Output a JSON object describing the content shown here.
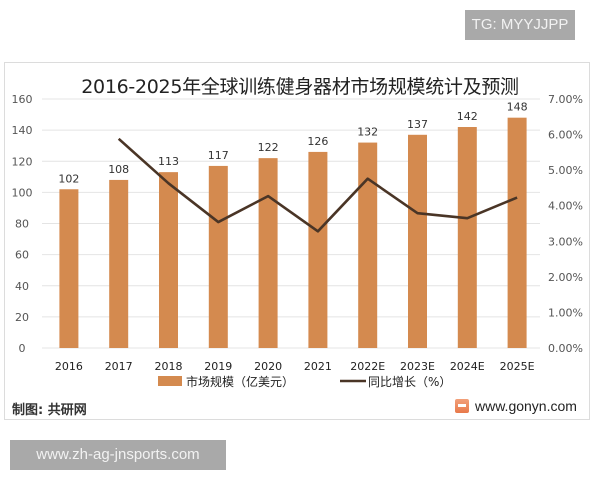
{
  "badges": {
    "top_right": "TG: MYYJJPP",
    "bottom_left": "www.zh-ag-jnsports.com"
  },
  "footer": {
    "source_label": "制图: 共研网",
    "site": "www.gonyn.com",
    "logo_icon": "gonyn-logo-icon"
  },
  "colors": {
    "bar": "#d48a4f",
    "line": "#4a3526",
    "grid": "#e4e4e4",
    "axis_text": "#555555"
  },
  "chart_data": {
    "type": "bar+line",
    "title": "2016-2025年全球训练健身器材市场规模统计及预测",
    "categories": [
      "2016",
      "2017",
      "2018",
      "2019",
      "2020",
      "2021",
      "2022E",
      "2023E",
      "2024E",
      "2025E"
    ],
    "series": [
      {
        "name": "市场规模（亿美元）",
        "type": "bar",
        "axis": "left",
        "values": [
          102,
          108,
          113,
          117,
          122,
          126,
          132,
          137,
          142,
          148
        ],
        "data_labels": [
          "102",
          "108",
          "113",
          "117",
          "122",
          "126",
          "132",
          "137",
          "142",
          "148"
        ]
      },
      {
        "name": "同比增长（%）",
        "type": "line",
        "axis": "right",
        "values": [
          null,
          5.88,
          4.63,
          3.54,
          4.27,
          3.28,
          4.76,
          3.79,
          3.65,
          4.23
        ]
      }
    ],
    "left_axis": {
      "ylim": [
        0,
        160
      ],
      "ticks": [
        "0",
        "20",
        "40",
        "60",
        "80",
        "100",
        "120",
        "140",
        "160"
      ]
    },
    "right_axis": {
      "ylim": [
        0,
        7
      ],
      "ticks": [
        "0.00%",
        "1.00%",
        "2.00%",
        "3.00%",
        "4.00%",
        "5.00%",
        "6.00%",
        "7.00%"
      ]
    },
    "xlabel": "",
    "ylabel": "",
    "grid": true,
    "legend_position": "bottom"
  }
}
